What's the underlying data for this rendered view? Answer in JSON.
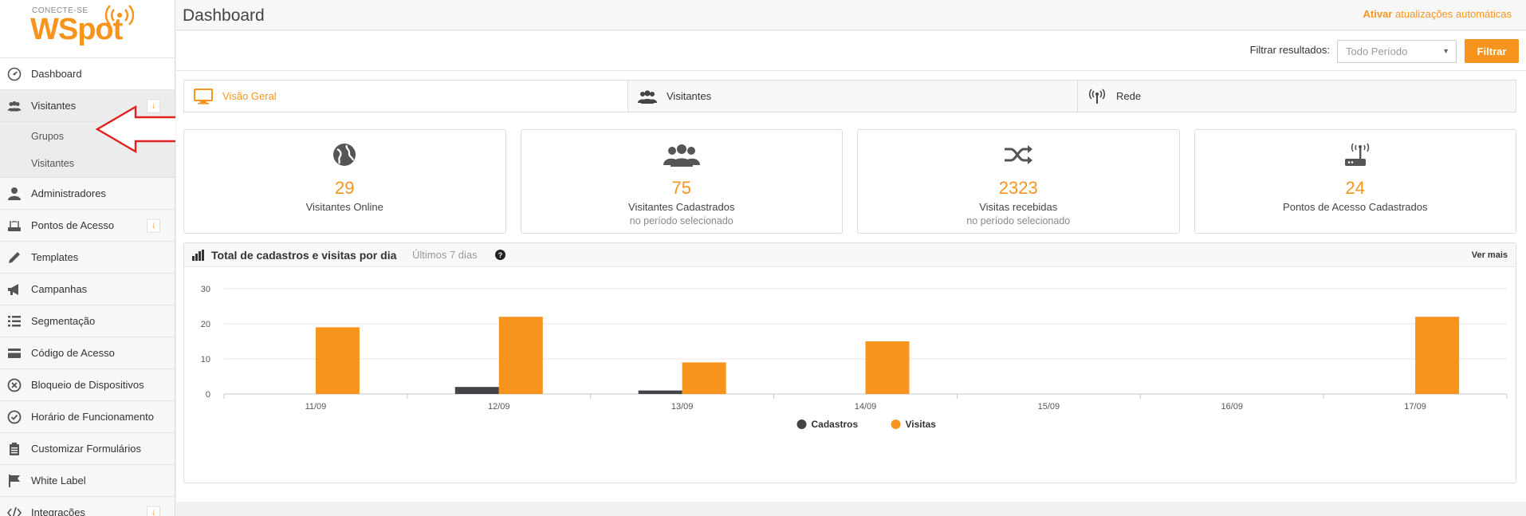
{
  "logo": {
    "small": "CONECTE-SE",
    "big": "WSpot"
  },
  "sidebar": {
    "items": [
      {
        "label": "Dashboard"
      },
      {
        "label": "Visitantes"
      },
      {
        "label": "Grupos"
      },
      {
        "label": "Visitantes"
      },
      {
        "label": "Administradores"
      },
      {
        "label": "Pontos de Acesso"
      },
      {
        "label": "Templates"
      },
      {
        "label": "Campanhas"
      },
      {
        "label": "Segmentação"
      },
      {
        "label": "Código de Acesso"
      },
      {
        "label": "Bloqueio de Dispositivos"
      },
      {
        "label": "Horário de Funcionamento"
      },
      {
        "label": "Customizar Formulários"
      },
      {
        "label": "White Label"
      },
      {
        "label": "Integrações"
      }
    ]
  },
  "header": {
    "title": "Dashboard",
    "auto_update_strong": "Ativar",
    "auto_update_text": "atualizações automáticas"
  },
  "filter": {
    "label": "Filtrar resultados:",
    "selected": "Todo Período",
    "button": "Filtrar"
  },
  "tabs": [
    {
      "label": "Visão Geral"
    },
    {
      "label": "Visitantes"
    },
    {
      "label": "Rede"
    }
  ],
  "stats": [
    {
      "value": "29",
      "label": "Visitantes Online",
      "sub": ""
    },
    {
      "value": "75",
      "label": "Visitantes Cadastrados",
      "sub": "no período selecionado"
    },
    {
      "value": "2323",
      "label": "Visitas recebidas",
      "sub": "no período selecionado"
    },
    {
      "value": "24",
      "label": "Pontos de Acesso Cadastrados",
      "sub": ""
    }
  ],
  "chart_panel": {
    "title": "Total de cadastros e visitas por dia",
    "subtitle": "Últimos 7 dias",
    "help": "?",
    "more": "Ver mais"
  },
  "colors": {
    "accent": "#f7941d",
    "dark_series": "#434348"
  },
  "chart_data": {
    "type": "bar",
    "categories": [
      "11/09",
      "12/09",
      "13/09",
      "14/09",
      "15/09",
      "16/09",
      "17/09"
    ],
    "series": [
      {
        "name": "Cadastros",
        "color": "#434348",
        "values": [
          0,
          2,
          1,
          0,
          0,
          0,
          0
        ]
      },
      {
        "name": "Visitas",
        "color": "#f7941d",
        "values": [
          19,
          22,
          9,
          15,
          0,
          0,
          22
        ]
      }
    ],
    "yticks": [
      0,
      10,
      20,
      30
    ],
    "ylim": [
      0,
      30
    ],
    "grid": true,
    "legend": "bottom-center"
  }
}
